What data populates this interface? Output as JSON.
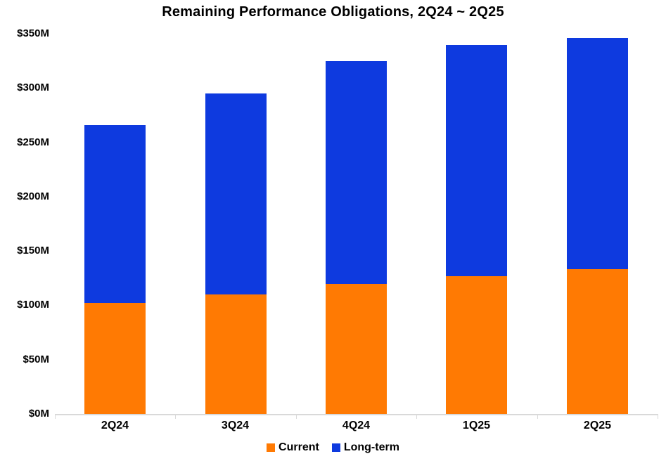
{
  "title": "Remaining Performance Obligations, 2Q24 ~ 2Q25",
  "chart_data": {
    "type": "bar",
    "stacked": true,
    "title": "Remaining Performance Obligations, 2Q24 ~ 2Q25",
    "categories": [
      "2Q24",
      "3Q24",
      "4Q24",
      "1Q25",
      "2Q25"
    ],
    "series": [
      {
        "name": "Current",
        "color": "#FF7A03",
        "values": [
          102,
          110,
          120,
          127,
          133
        ]
      },
      {
        "name": "Long-term",
        "color": "#0E3ADF",
        "values": [
          164,
          185,
          205,
          213,
          213
        ]
      }
    ],
    "totals": [
      266,
      295,
      325,
      340,
      346
    ],
    "xlabel": "",
    "ylabel": "",
    "ylim": [
      0,
      350
    ],
    "ytick_step": 50,
    "ytick_labels": [
      "$0M",
      "$50M",
      "$100M",
      "$150M",
      "$200M",
      "$250M",
      "$300M",
      "$350M"
    ],
    "grid": false,
    "legend_position": "bottom"
  },
  "colors": {
    "axis": "#D9D9D9",
    "text": "#000000",
    "background": "#FFFFFF"
  }
}
